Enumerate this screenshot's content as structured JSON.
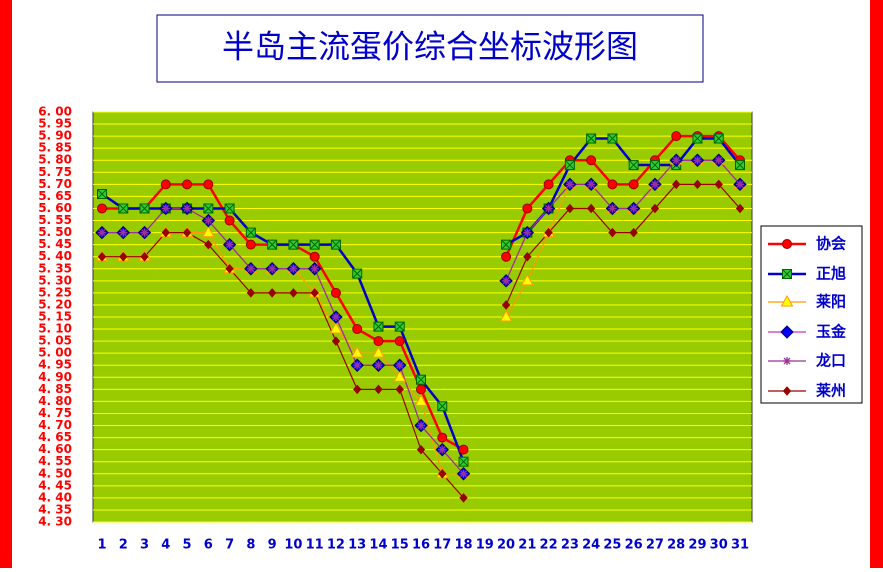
{
  "chart_data": {
    "type": "line",
    "title": "半岛主流蛋价综合坐标波形图",
    "categories": [
      "1",
      "2",
      "3",
      "4",
      "5",
      "6",
      "7",
      "8",
      "9",
      "10",
      "11",
      "12",
      "13",
      "14",
      "15",
      "16",
      "17",
      "18",
      "19",
      "20",
      "21",
      "22",
      "23",
      "24",
      "25",
      "26",
      "27",
      "28",
      "29",
      "30",
      "31"
    ],
    "series": [
      {
        "name": "协会",
        "color": "#ff0000",
        "marker": "circle",
        "marker_color": "#ff0000",
        "values": [
          5.6,
          5.6,
          5.6,
          5.7,
          5.7,
          5.7,
          5.55,
          5.45,
          5.45,
          5.45,
          5.4,
          5.25,
          5.1,
          5.05,
          5.05,
          4.85,
          4.65,
          4.6,
          null,
          5.4,
          5.6,
          5.7,
          5.8,
          5.8,
          5.7,
          5.7,
          5.8,
          5.9,
          5.9,
          5.9,
          5.8
        ]
      },
      {
        "name": "正旭",
        "color": "#0000cc",
        "marker": "square",
        "marker_color": "#33cc33",
        "values": [
          5.66,
          5.6,
          5.6,
          5.6,
          5.6,
          5.6,
          5.6,
          5.5,
          5.45,
          5.45,
          5.45,
          5.45,
          5.33,
          5.11,
          5.11,
          4.89,
          4.78,
          4.55,
          null,
          5.45,
          5.5,
          5.6,
          5.78,
          5.89,
          5.89,
          5.78,
          5.78,
          5.78,
          5.89,
          5.89,
          5.78
        ]
      },
      {
        "name": "莱阳",
        "color": "#ff9900",
        "marker": "triangle",
        "marker_color": "#ffff00",
        "values": [
          5.4,
          5.4,
          5.4,
          5.5,
          5.5,
          5.5,
          5.35,
          5.35,
          5.35,
          5.35,
          5.25,
          5.1,
          5.0,
          5.0,
          4.9,
          4.8,
          4.5,
          4.5,
          null,
          5.15,
          5.3,
          5.5,
          5.7,
          5.7,
          5.6,
          5.6,
          5.7,
          5.8,
          5.8,
          5.8,
          5.7
        ]
      },
      {
        "name": "玉金",
        "color": "#cc33cc",
        "marker": "diamond",
        "marker_color": "#0000ff",
        "values": [
          5.5,
          5.5,
          5.5,
          5.6,
          5.6,
          5.55,
          5.45,
          5.35,
          5.35,
          5.35,
          5.35,
          5.15,
          4.95,
          4.95,
          4.95,
          4.7,
          4.6,
          4.5,
          null,
          5.3,
          5.5,
          5.6,
          5.7,
          5.7,
          5.6,
          5.6,
          5.7,
          5.8,
          5.8,
          5.8,
          5.7
        ]
      },
      {
        "name": "龙口",
        "color": "#993399",
        "marker": "star",
        "marker_color": "#993399",
        "values": [
          5.5,
          5.5,
          5.5,
          5.6,
          5.6,
          5.55,
          5.45,
          5.35,
          5.35,
          5.35,
          5.35,
          5.15,
          4.95,
          4.95,
          4.95,
          4.7,
          4.6,
          4.5,
          null,
          5.3,
          5.5,
          5.6,
          5.7,
          5.7,
          5.6,
          5.6,
          5.7,
          5.8,
          5.8,
          5.8,
          5.7
        ]
      },
      {
        "name": "莱州",
        "color": "#990000",
        "marker": "small-diamond",
        "marker_color": "#990000",
        "values": [
          5.4,
          5.4,
          5.4,
          5.5,
          5.5,
          5.45,
          5.35,
          5.25,
          5.25,
          5.25,
          5.25,
          5.05,
          4.85,
          4.85,
          4.85,
          4.6,
          4.5,
          4.4,
          null,
          5.2,
          5.4,
          5.5,
          5.6,
          5.6,
          5.5,
          5.5,
          5.6,
          5.7,
          5.7,
          5.7,
          5.6
        ]
      }
    ],
    "ylim": [
      4.3,
      6.0
    ],
    "yticks": [
      {
        "value": 4.3,
        "label": "4. 30"
      },
      {
        "value": 4.35,
        "label": "4. 35"
      },
      {
        "value": 4.4,
        "label": "4. 40"
      },
      {
        "value": 4.45,
        "label": "4. 45"
      },
      {
        "value": 4.5,
        "label": "4. 50"
      },
      {
        "value": 4.55,
        "label": "4. 55"
      },
      {
        "value": 4.6,
        "label": "4. 60"
      },
      {
        "value": 4.65,
        "label": "4. 65"
      },
      {
        "value": 4.7,
        "label": "4. 70"
      },
      {
        "value": 4.75,
        "label": "4. 75"
      },
      {
        "value": 4.8,
        "label": "4. 80"
      },
      {
        "value": 4.85,
        "label": "4. 85"
      },
      {
        "value": 4.9,
        "label": "4. 90"
      },
      {
        "value": 4.95,
        "label": "4. 95"
      },
      {
        "value": 5.0,
        "label": "5. 00"
      },
      {
        "value": 5.05,
        "label": "5. 05"
      },
      {
        "value": 5.1,
        "label": "5. 10"
      },
      {
        "value": 5.15,
        "label": "5. 15"
      },
      {
        "value": 5.2,
        "label": "5. 20"
      },
      {
        "value": 5.25,
        "label": "5. 25"
      },
      {
        "value": 5.3,
        "label": "5. 30"
      },
      {
        "value": 5.35,
        "label": "5. 35"
      },
      {
        "value": 5.4,
        "label": "5. 40"
      },
      {
        "value": 5.45,
        "label": "5. 45"
      },
      {
        "value": 5.5,
        "label": "5. 50"
      },
      {
        "value": 5.55,
        "label": "5. 55"
      },
      {
        "value": 5.6,
        "label": "5. 60"
      },
      {
        "value": 5.65,
        "label": "5. 65"
      },
      {
        "value": 5.7,
        "label": "5. 70"
      },
      {
        "value": 5.75,
        "label": "5. 75"
      },
      {
        "value": 5.8,
        "label": "5. 80"
      },
      {
        "value": 5.85,
        "label": "5. 85"
      },
      {
        "value": 5.9,
        "label": "5. 90"
      },
      {
        "value": 5.95,
        "label": "5. 95"
      },
      {
        "value": 6.0,
        "label": "6. 00"
      }
    ],
    "grid": true,
    "grid_color": "#ffff00",
    "plot_background": "#99cc00",
    "legend": "right"
  }
}
